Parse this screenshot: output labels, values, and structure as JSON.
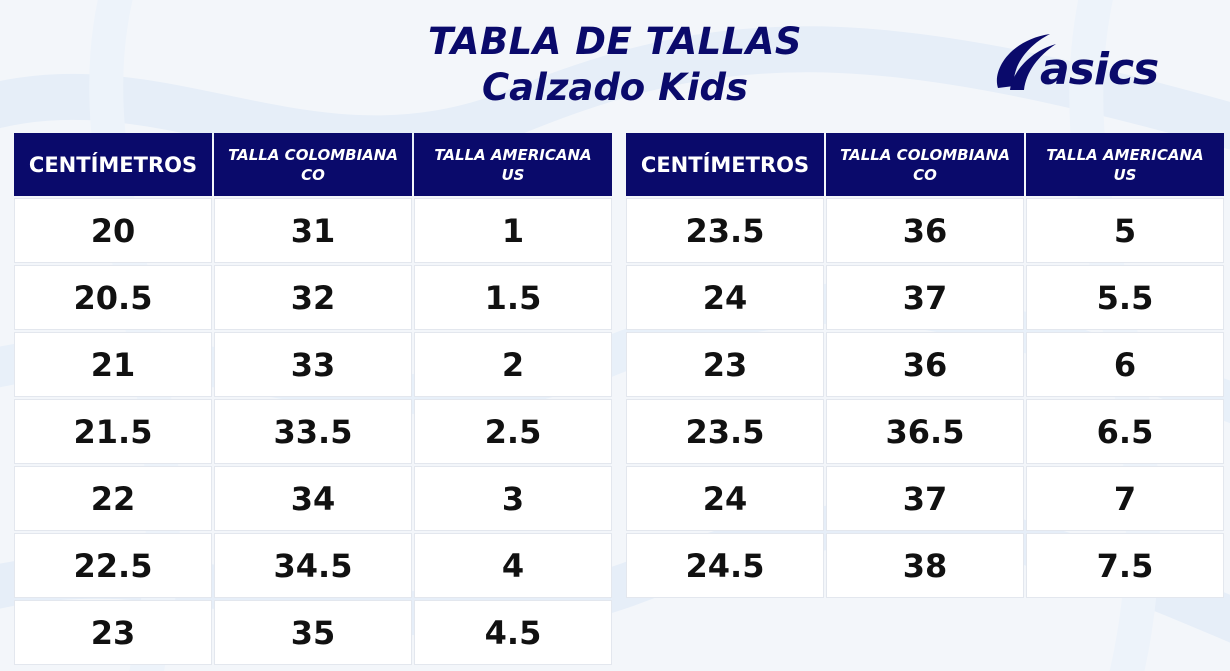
{
  "title": {
    "line1": "TABLA DE TALLAS",
    "line2": "Calzado Kids"
  },
  "brand": {
    "logo_text": "asics",
    "color": "#0a0a6b"
  },
  "headers": {
    "cm": "CENTÍMETROS",
    "co_line1": "TALLA COLOMBIANA",
    "co_line2": "CO",
    "us_line1": "TALLA AMERICANA",
    "us_line2": "US"
  },
  "left_table": {
    "rows": [
      {
        "cm": "20",
        "co": "31",
        "us": "1"
      },
      {
        "cm": "20.5",
        "co": "32",
        "us": "1.5"
      },
      {
        "cm": "21",
        "co": "33",
        "us": "2"
      },
      {
        "cm": "21.5",
        "co": "33.5",
        "us": "2.5"
      },
      {
        "cm": "22",
        "co": "34",
        "us": "3"
      },
      {
        "cm": "22.5",
        "co": "34.5",
        "us": "4"
      },
      {
        "cm": "23",
        "co": "35",
        "us": "4.5"
      }
    ]
  },
  "right_table": {
    "rows": [
      {
        "cm": "23.5",
        "co": "36",
        "us": "5"
      },
      {
        "cm": "24",
        "co": "37",
        "us": "5.5"
      },
      {
        "cm": "23",
        "co": "36",
        "us": "6"
      },
      {
        "cm": "23.5",
        "co": "36.5",
        "us": "6.5"
      },
      {
        "cm": "24",
        "co": "37",
        "us": "7"
      },
      {
        "cm": "24.5",
        "co": "38",
        "us": "7.5"
      }
    ]
  }
}
